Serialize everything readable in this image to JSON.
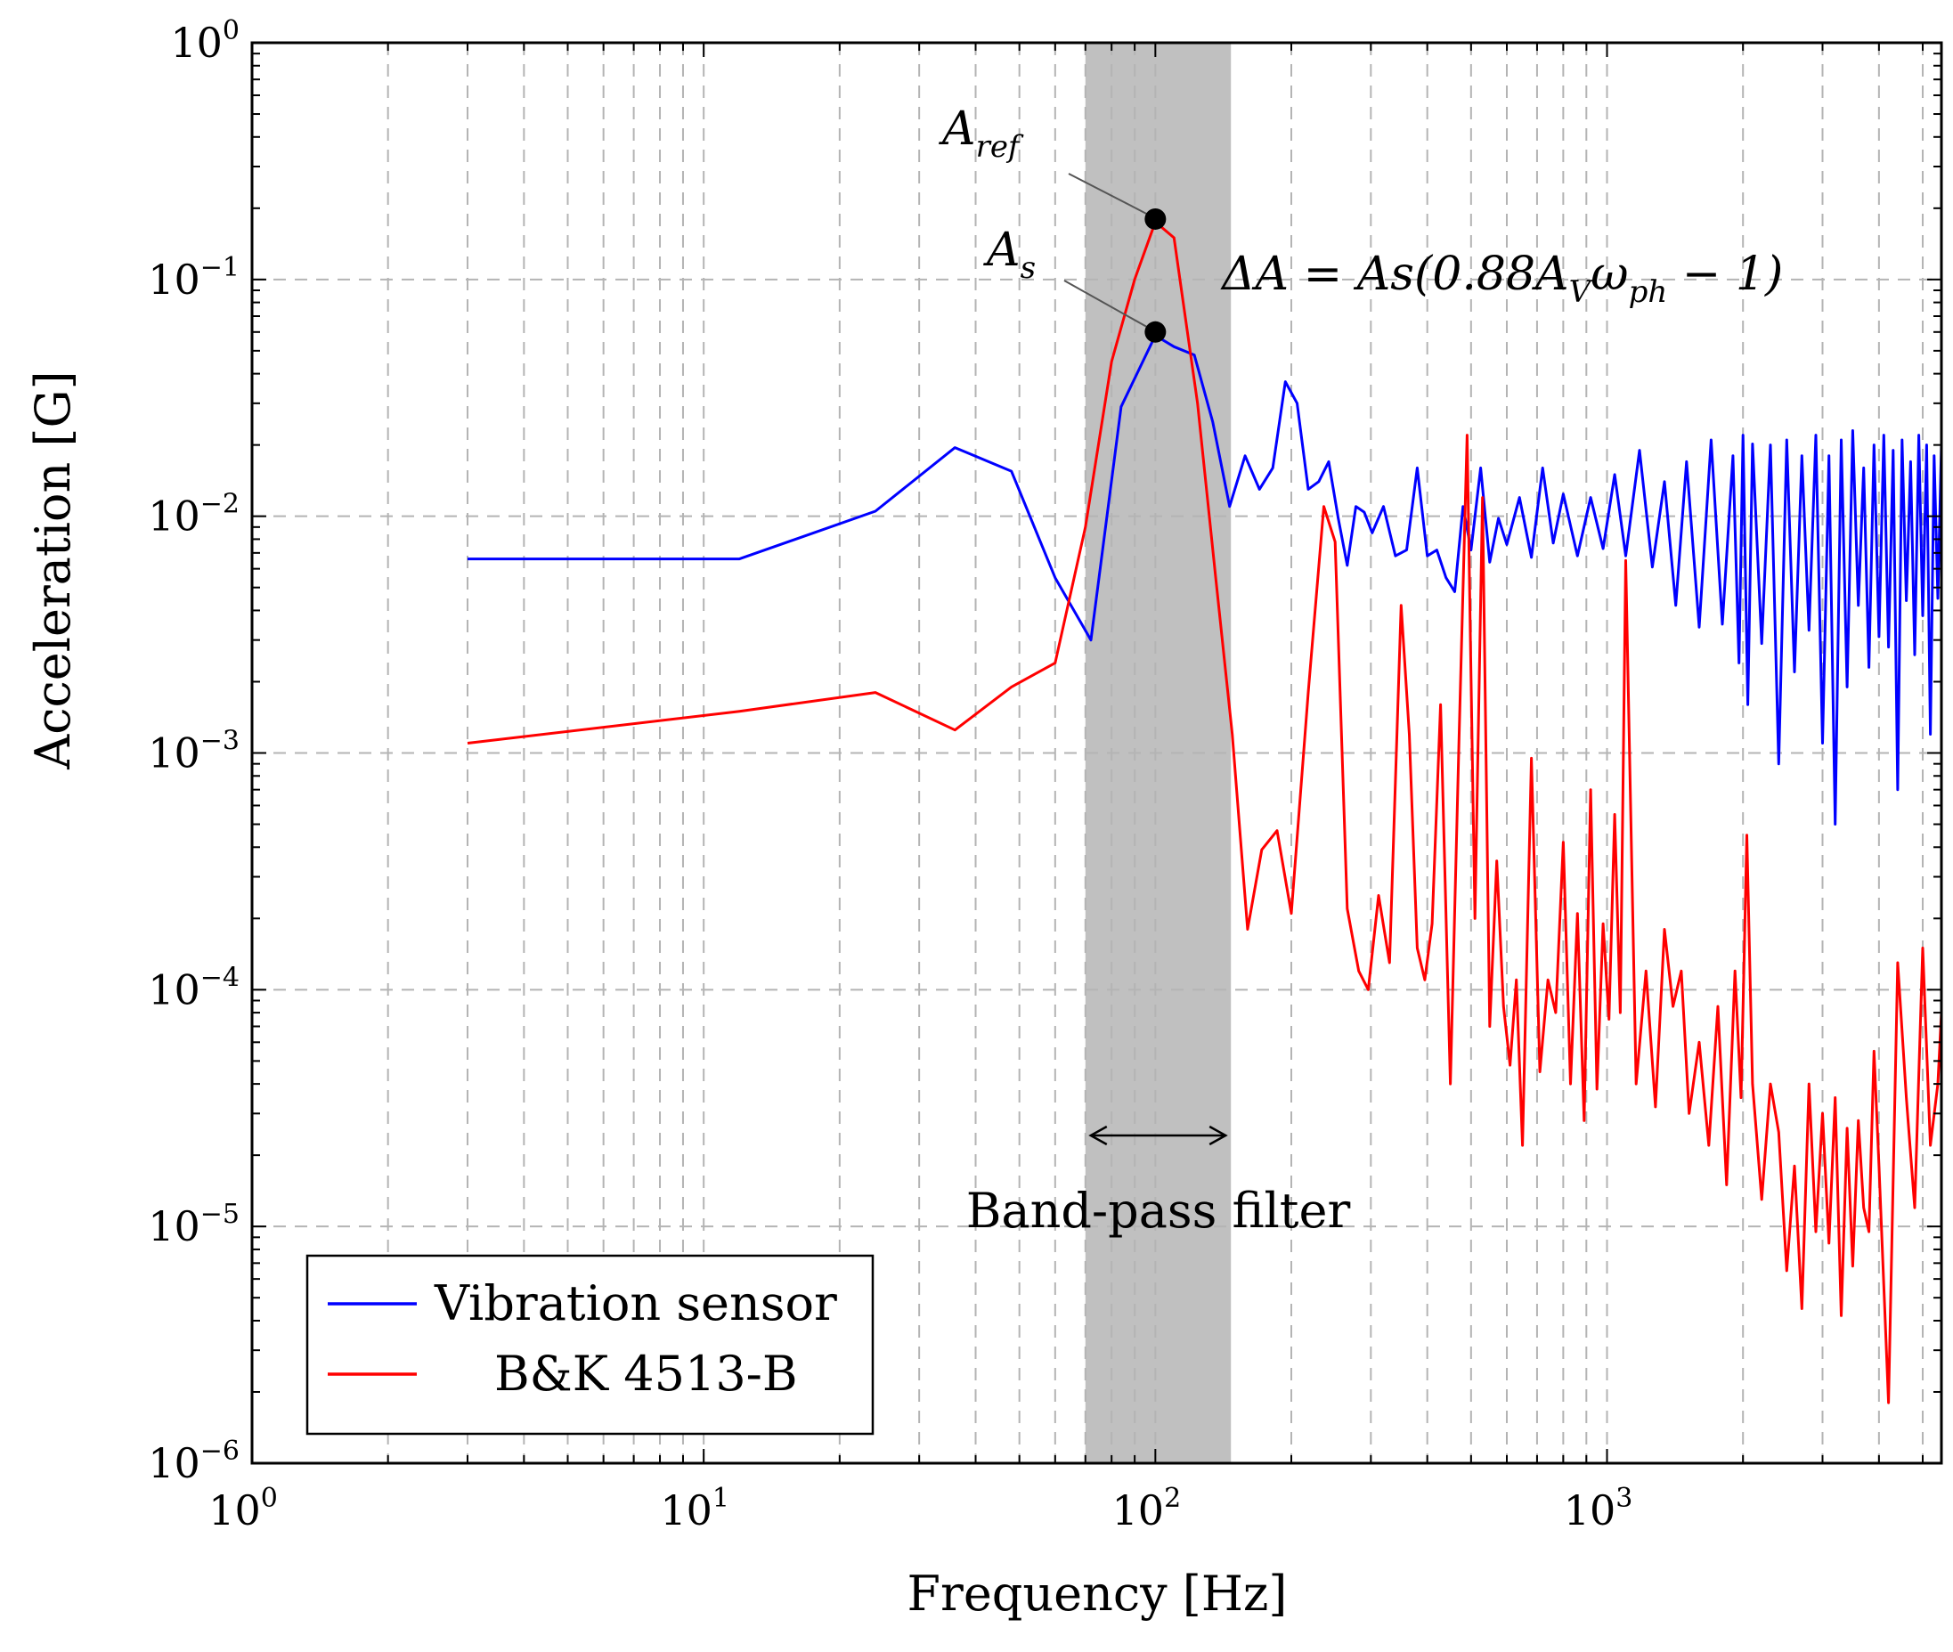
{
  "chart_data": {
    "type": "line",
    "xscale": "log",
    "yscale": "log",
    "xlabel": "Frequency [Hz]",
    "ylabel": "Acceleration [G]",
    "xlim": [
      1,
      5500
    ],
    "ylim": [
      1e-06,
      1
    ],
    "grid": true,
    "x_ticks": [
      {
        "value": 1,
        "base": "10",
        "exp": "0"
      },
      {
        "value": 10,
        "base": "10",
        "exp": "1"
      },
      {
        "value": 100,
        "base": "10",
        "exp": "2"
      },
      {
        "value": 1000,
        "base": "10",
        "exp": "3"
      }
    ],
    "y_ticks": [
      {
        "value": 1,
        "base": "10",
        "exp": "0"
      },
      {
        "value": 0.1,
        "base": "10",
        "exp": "−1"
      },
      {
        "value": 0.01,
        "base": "10",
        "exp": "−2"
      },
      {
        "value": 0.001,
        "base": "10",
        "exp": "−3"
      },
      {
        "value": 0.0001,
        "base": "10",
        "exp": "−4"
      },
      {
        "value": 1e-05,
        "base": "10",
        "exp": "−5"
      },
      {
        "value": 1e-06,
        "base": "10",
        "exp": "−6"
      }
    ],
    "band": {
      "x_start": 70,
      "x_end": 147,
      "label": "Band-pass filter",
      "color": "#c0c0c0"
    },
    "annotations": {
      "a_ref": {
        "main": "A",
        "sub": "ref",
        "x": 100,
        "y": 0.18
      },
      "a_s": {
        "main": "A",
        "sub": "s",
        "x": 100,
        "y": 0.06
      },
      "formula_parts": [
        "ΔA = As(0.88A",
        "V",
        "ω",
        "ph",
        " − 1)"
      ]
    },
    "legend": {
      "position": "bottom-left",
      "entries": [
        {
          "label": "Vibration sensor",
          "color": "#0000ff"
        },
        {
          "label": "B&K 4513-B",
          "color": "#ff0000"
        }
      ]
    },
    "series": [
      {
        "name": "Vibration sensor",
        "color": "#0000ff",
        "x": [
          3,
          12,
          24,
          36,
          48,
          60,
          72,
          84,
          100,
          110,
          122,
          134,
          146,
          158,
          170,
          182,
          194,
          206,
          218,
          230,
          242,
          254,
          266,
          278,
          290,
          302,
          320,
          340,
          360,
          380,
          400,
          420,
          440,
          460,
          480,
          500,
          525,
          550,
          575,
          600,
          640,
          680,
          720,
          760,
          800,
          860,
          920,
          980,
          1040,
          1100,
          1180,
          1260,
          1340,
          1420,
          1500,
          1600,
          1700,
          1800,
          1900,
          1960,
          2000,
          2050,
          2100,
          2200,
          2300,
          2400,
          2500,
          2600,
          2700,
          2800,
          2900,
          3000,
          3100,
          3200,
          3300,
          3400,
          3500,
          3600,
          3700,
          3800,
          3900,
          4000,
          4100,
          4200,
          4300,
          4400,
          4500,
          4600,
          4700,
          4800,
          4900,
          5000,
          5100,
          5200,
          5300,
          5400,
          5500
        ],
        "y": [
          0.0066,
          0.0066,
          0.0105,
          0.0195,
          0.0155,
          0.0055,
          0.003,
          0.029,
          0.058,
          0.052,
          0.048,
          0.025,
          0.011,
          0.018,
          0.013,
          0.016,
          0.037,
          0.03,
          0.013,
          0.014,
          0.017,
          0.0098,
          0.0062,
          0.011,
          0.0104,
          0.0085,
          0.011,
          0.0068,
          0.0072,
          0.016,
          0.0068,
          0.0072,
          0.0055,
          0.0048,
          0.011,
          0.0072,
          0.016,
          0.0064,
          0.0098,
          0.0076,
          0.012,
          0.0067,
          0.016,
          0.0077,
          0.0124,
          0.0068,
          0.012,
          0.0073,
          0.015,
          0.0068,
          0.019,
          0.0061,
          0.014,
          0.0042,
          0.017,
          0.0034,
          0.021,
          0.0035,
          0.018,
          0.0024,
          0.022,
          0.0016,
          0.0202,
          0.0029,
          0.02,
          0.0009,
          0.021,
          0.0022,
          0.018,
          0.0033,
          0.022,
          0.0011,
          0.018,
          0.0005,
          0.021,
          0.0019,
          0.023,
          0.0042,
          0.016,
          0.0023,
          0.02,
          0.0031,
          0.022,
          0.0028,
          0.019,
          0.0007,
          0.021,
          0.0044,
          0.017,
          0.0026,
          0.022,
          0.0038,
          0.02,
          0.0012,
          0.018,
          0.0045,
          0.02
        ]
      },
      {
        "name": "B&K 4513-B",
        "color": "#ff0000",
        "x": [
          3,
          12,
          24,
          36,
          48,
          60,
          70,
          80,
          90,
          100,
          110,
          124,
          136,
          148,
          160,
          172,
          186,
          200,
          218,
          236,
          250,
          266,
          282,
          296,
          312,
          330,
          350,
          365,
          380,
          395,
          410,
          428,
          450,
          470,
          490,
          510,
          530,
          550,
          570,
          590,
          610,
          630,
          650,
          680,
          710,
          740,
          770,
          800,
          830,
          860,
          890,
          920,
          950,
          980,
          1010,
          1040,
          1070,
          1100,
          1160,
          1220,
          1280,
          1340,
          1400,
          1460,
          1520,
          1600,
          1680,
          1760,
          1840,
          1920,
          1980,
          2040,
          2100,
          2200,
          2300,
          2400,
          2500,
          2600,
          2700,
          2800,
          2900,
          3000,
          3100,
          3200,
          3300,
          3400,
          3500,
          3600,
          3700,
          3800,
          3900,
          4000,
          4200,
          4400,
          4600,
          4800,
          5000,
          5200,
          5400,
          5500
        ],
        "y": [
          0.0011,
          0.0015,
          0.0018,
          0.00125,
          0.0019,
          0.0024,
          0.009,
          0.045,
          0.1,
          0.175,
          0.15,
          0.03,
          0.0055,
          0.0012,
          0.00018,
          0.00039,
          0.00047,
          0.00021,
          0.0018,
          0.011,
          0.0078,
          0.00022,
          0.00012,
          0.0001,
          0.00025,
          0.00013,
          0.0042,
          0.0012,
          0.00015,
          0.00011,
          0.00019,
          0.0016,
          4e-05,
          0.0011,
          0.022,
          0.0002,
          0.012,
          7e-05,
          0.00035,
          8.5e-05,
          4.8e-05,
          0.00011,
          2.2e-05,
          0.00095,
          4.5e-05,
          0.00011,
          8e-05,
          0.00042,
          4e-05,
          0.00021,
          2.8e-05,
          0.0007,
          3.8e-05,
          0.00019,
          7.5e-05,
          0.00055,
          8e-05,
          0.0065,
          4e-05,
          0.00012,
          3.2e-05,
          0.00018,
          8.5e-05,
          0.00012,
          3e-05,
          6e-05,
          2.2e-05,
          8.5e-05,
          1.5e-05,
          0.00012,
          3.5e-05,
          0.00045,
          4e-05,
          1.3e-05,
          4e-05,
          2.5e-05,
          6.5e-06,
          1.8e-05,
          4.5e-06,
          4e-05,
          9.5e-06,
          3e-05,
          8.5e-06,
          3.5e-05,
          4.2e-06,
          2.6e-05,
          6.8e-06,
          2.8e-05,
          1.2e-05,
          9.5e-06,
          5.5e-05,
          1.8e-05,
          1.8e-06,
          0.00013,
          3.5e-05,
          1.2e-05,
          0.00015,
          2.2e-05,
          4e-05,
          8e-05
        ]
      }
    ]
  }
}
